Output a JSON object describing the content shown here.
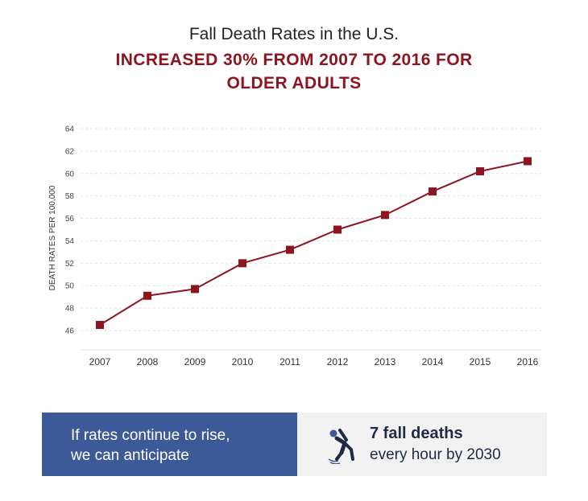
{
  "header": {
    "line1": "Fall Death Rates in the U.S.",
    "line2": "INCREASED 30%  FROM 2007 TO 2016 FOR",
    "line3": "OLDER ADULTS"
  },
  "chart_data": {
    "type": "line",
    "ylabel": "DEATH RATES PER 100,000",
    "xlabel": "",
    "ylim": [
      44,
      64
    ],
    "yticks": [
      46,
      48,
      50,
      52,
      54,
      56,
      58,
      60,
      62,
      64
    ],
    "x": [
      "2007",
      "2008",
      "2009",
      "2010",
      "2011",
      "2012",
      "2013",
      "2014",
      "2015",
      "2016"
    ],
    "series": [
      {
        "values": [
          46.5,
          49.1,
          49.7,
          52.0,
          53.2,
          55.0,
          56.3,
          58.4,
          60.2,
          61.1
        ]
      }
    ],
    "grid": true,
    "marker": "square",
    "color": "#8e1520"
  },
  "banner": {
    "left_line1": "If rates continue to rise,",
    "left_line2": "we can anticipate",
    "right_line1": "7 fall deaths",
    "right_line2": "every hour by 2030",
    "icon": "falling-person-icon",
    "left_color": "#3d5a98",
    "right_bg": "#f2f2f2"
  }
}
